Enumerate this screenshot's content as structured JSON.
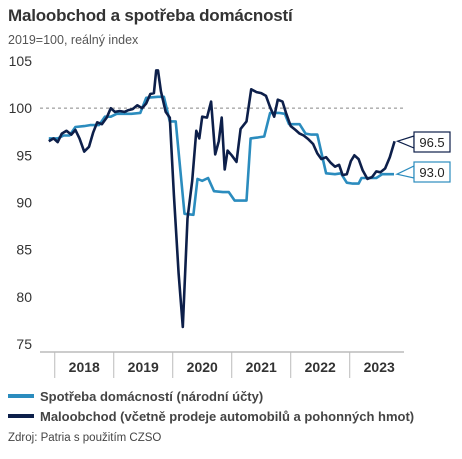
{
  "title": "Maloobchod a spotřeba domácností",
  "subtitle": "2019=100, reálný index",
  "source": "Zdroj: Patria s použitím CZSO",
  "colors": {
    "spotreba": "#2b8cbe",
    "maloobchod": "#0d1f4a",
    "reference": "#888888",
    "axis": "#999999"
  },
  "chart_data": {
    "type": "line",
    "x_range": [
      2017.75,
      2023.92
    ],
    "ylim": [
      75,
      105
    ],
    "yticks": [
      "75",
      "80",
      "85",
      "90",
      "95",
      "100",
      "105"
    ],
    "xticks": [
      {
        "label": "2018",
        "x": 2018.5
      },
      {
        "label": "2019",
        "x": 2019.5
      },
      {
        "label": "2020",
        "x": 2020.5
      },
      {
        "label": "2021",
        "x": 2021.5
      },
      {
        "label": "2022",
        "x": 2022.5
      },
      {
        "label": "2023",
        "x": 2023.5
      }
    ],
    "reference_line": 100,
    "grid": false,
    "legend_position": "bottom",
    "series": [
      {
        "name": "Spotřeba domácností (národní účty)",
        "color_key": "spotreba",
        "end_label": "93.0",
        "points": [
          [
            2017.9,
            96.8
          ],
          [
            2018.05,
            96.8
          ],
          [
            2018.15,
            97.1
          ],
          [
            2018.25,
            97.1
          ],
          [
            2018.35,
            98.0
          ],
          [
            2018.5,
            98.1
          ],
          [
            2018.6,
            98.2
          ],
          [
            2018.75,
            98.2
          ],
          [
            2018.85,
            99.1
          ],
          [
            2018.95,
            99.1
          ],
          [
            2019.05,
            99.4
          ],
          [
            2019.2,
            99.4
          ],
          [
            2019.3,
            99.4
          ],
          [
            2019.45,
            99.5
          ],
          [
            2019.55,
            101.1
          ],
          [
            2019.75,
            101.2
          ],
          [
            2019.85,
            101.2
          ],
          [
            2019.95,
            98.6
          ],
          [
            2020.05,
            98.6
          ],
          [
            2020.2,
            88.8
          ],
          [
            2020.35,
            88.7
          ],
          [
            2020.42,
            92.5
          ],
          [
            2020.5,
            92.3
          ],
          [
            2020.6,
            92.6
          ],
          [
            2020.7,
            91.2
          ],
          [
            2020.85,
            91.1
          ],
          [
            2020.95,
            91.1
          ],
          [
            2021.05,
            90.2
          ],
          [
            2021.25,
            90.2
          ],
          [
            2021.32,
            96.8
          ],
          [
            2021.45,
            96.9
          ],
          [
            2021.55,
            97.0
          ],
          [
            2021.65,
            99.5
          ],
          [
            2021.8,
            99.5
          ],
          [
            2021.9,
            99.4
          ],
          [
            2021.97,
            98.3
          ],
          [
            2022.15,
            98.3
          ],
          [
            2022.25,
            97.3
          ],
          [
            2022.35,
            97.2
          ],
          [
            2022.45,
            97.2
          ],
          [
            2022.6,
            93.1
          ],
          [
            2022.75,
            93.0
          ],
          [
            2022.85,
            93.1
          ],
          [
            2022.95,
            92.1
          ],
          [
            2023.05,
            92.0
          ],
          [
            2023.15,
            92.0
          ],
          [
            2023.2,
            92.6
          ],
          [
            2023.35,
            92.6
          ],
          [
            2023.45,
            92.6
          ],
          [
            2023.55,
            93.0
          ],
          [
            2023.75,
            93.0
          ]
        ]
      },
      {
        "name": "Maloobchod (včetně prodeje automobilů a pohonných hmot)",
        "color_key": "maloobchod",
        "end_label": "96.5",
        "points": [
          [
            2017.9,
            96.5
          ],
          [
            2017.98,
            96.8
          ],
          [
            2018.05,
            96.4
          ],
          [
            2018.12,
            97.3
          ],
          [
            2018.2,
            97.6
          ],
          [
            2018.28,
            97.2
          ],
          [
            2018.35,
            97.7
          ],
          [
            2018.42,
            96.8
          ],
          [
            2018.5,
            95.4
          ],
          [
            2018.58,
            95.9
          ],
          [
            2018.65,
            97.4
          ],
          [
            2018.72,
            98.5
          ],
          [
            2018.8,
            98.3
          ],
          [
            2018.88,
            99.0
          ],
          [
            2018.95,
            100.0
          ],
          [
            2019.02,
            99.6
          ],
          [
            2019.1,
            99.7
          ],
          [
            2019.18,
            99.6
          ],
          [
            2019.25,
            99.8
          ],
          [
            2019.32,
            99.9
          ],
          [
            2019.4,
            100.3
          ],
          [
            2019.48,
            100.0
          ],
          [
            2019.55,
            100.5
          ],
          [
            2019.62,
            101.5
          ],
          [
            2019.68,
            101.6
          ],
          [
            2019.72,
            104.0
          ],
          [
            2019.75,
            104.0
          ],
          [
            2019.8,
            101.8
          ],
          [
            2019.88,
            99.6
          ],
          [
            2019.95,
            99.0
          ],
          [
            2020.02,
            90.8
          ],
          [
            2020.1,
            82.5
          ],
          [
            2020.17,
            76.8
          ],
          [
            2020.25,
            88.3
          ],
          [
            2020.33,
            92.3
          ],
          [
            2020.4,
            97.6
          ],
          [
            2020.45,
            96.8
          ],
          [
            2020.5,
            99.1
          ],
          [
            2020.58,
            99.0
          ],
          [
            2020.65,
            100.7
          ],
          [
            2020.72,
            95.1
          ],
          [
            2020.78,
            96.5
          ],
          [
            2020.83,
            99.0
          ],
          [
            2020.88,
            93.5
          ],
          [
            2020.93,
            95.5
          ],
          [
            2021.0,
            95.0
          ],
          [
            2021.08,
            94.3
          ],
          [
            2021.15,
            97.8
          ],
          [
            2021.25,
            98.6
          ],
          [
            2021.33,
            102.0
          ],
          [
            2021.42,
            101.7
          ],
          [
            2021.5,
            101.6
          ],
          [
            2021.58,
            101.3
          ],
          [
            2021.65,
            100.1
          ],
          [
            2021.72,
            99.1
          ],
          [
            2021.78,
            100.9
          ],
          [
            2021.86,
            100.7
          ],
          [
            2021.92,
            99.5
          ],
          [
            2022.0,
            98.1
          ],
          [
            2022.08,
            97.7
          ],
          [
            2022.15,
            97.3
          ],
          [
            2022.22,
            97.1
          ],
          [
            2022.3,
            96.7
          ],
          [
            2022.38,
            96.2
          ],
          [
            2022.45,
            95.2
          ],
          [
            2022.52,
            94.6
          ],
          [
            2022.6,
            94.8
          ],
          [
            2022.68,
            94.2
          ],
          [
            2022.75,
            93.8
          ],
          [
            2022.82,
            94.0
          ],
          [
            2022.88,
            92.9
          ],
          [
            2022.95,
            93.0
          ],
          [
            2023.02,
            94.4
          ],
          [
            2023.08,
            95.0
          ],
          [
            2023.15,
            94.6
          ],
          [
            2023.22,
            93.4
          ],
          [
            2023.3,
            92.5
          ],
          [
            2023.38,
            92.7
          ],
          [
            2023.45,
            93.3
          ],
          [
            2023.52,
            93.2
          ],
          [
            2023.6,
            93.6
          ],
          [
            2023.68,
            94.8
          ],
          [
            2023.76,
            96.5
          ]
        ]
      }
    ]
  }
}
